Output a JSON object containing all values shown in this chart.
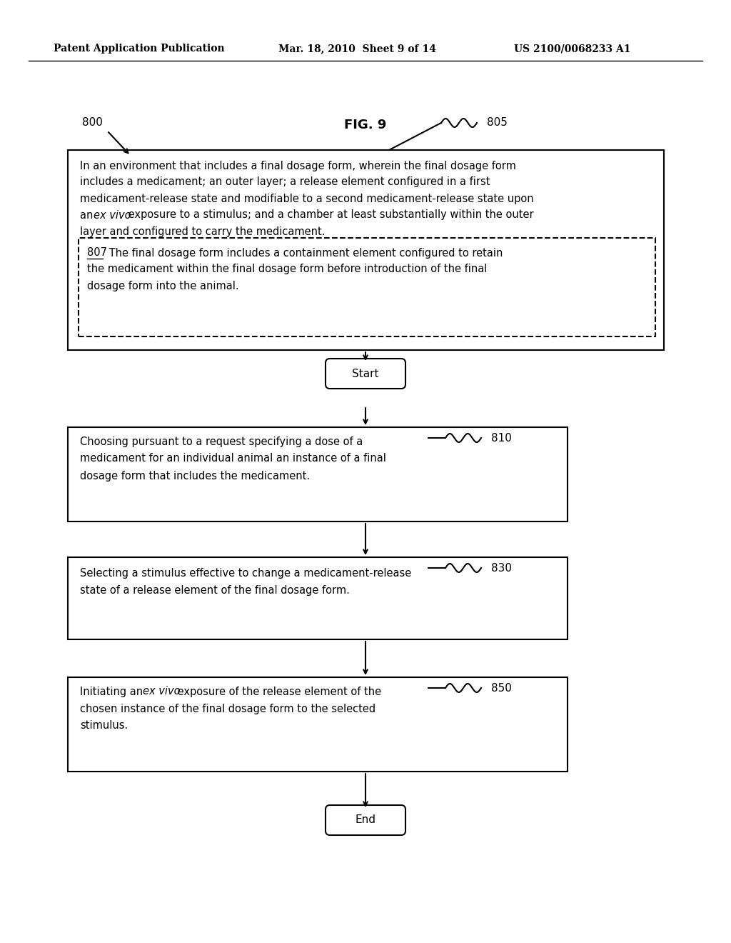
{
  "background_color": "#ffffff",
  "header_left": "Patent Application Publication",
  "header_center": "Mar. 18, 2010  Sheet 9 of 14",
  "header_right": "US 2100/0068233 A1",
  "fig_label": "FIG. 9",
  "fig_number": "800",
  "ref_805": "805",
  "ref_810": "810",
  "ref_830": "830",
  "ref_850": "850",
  "ref_807": "807",
  "outer_box_text_lines": [
    "In an environment that includes a final dosage form, wherein the final dosage form",
    "includes a medicament; an outer layer; a release element configured in a first",
    "medicament-release state and modifiable to a second medicament-release state upon",
    "an ex vivo exposure to a stimulus; and a chamber at least substantially within the outer",
    "layer and configured to carry the medicament."
  ],
  "inner_dashed_text_lines": [
    "807  The final dosage form includes a containment element configured to retain",
    "the medicament within the final dosage form before introduction of the final",
    "dosage form into the animal."
  ],
  "start_label": "Start",
  "end_label": "End",
  "box810_lines": [
    "Choosing pursuant to a request specifying a dose of a",
    "medicament for an individual animal an instance of a final",
    "dosage form that includes the medicament."
  ],
  "box830_lines": [
    "Selecting a stimulus effective to change a medicament-release",
    "state of a release element of the final dosage form."
  ],
  "box850_lines": [
    "Initiating an ex vivo exposure of the release element of the",
    "chosen instance of the final dosage form to the selected",
    "stimulus."
  ]
}
